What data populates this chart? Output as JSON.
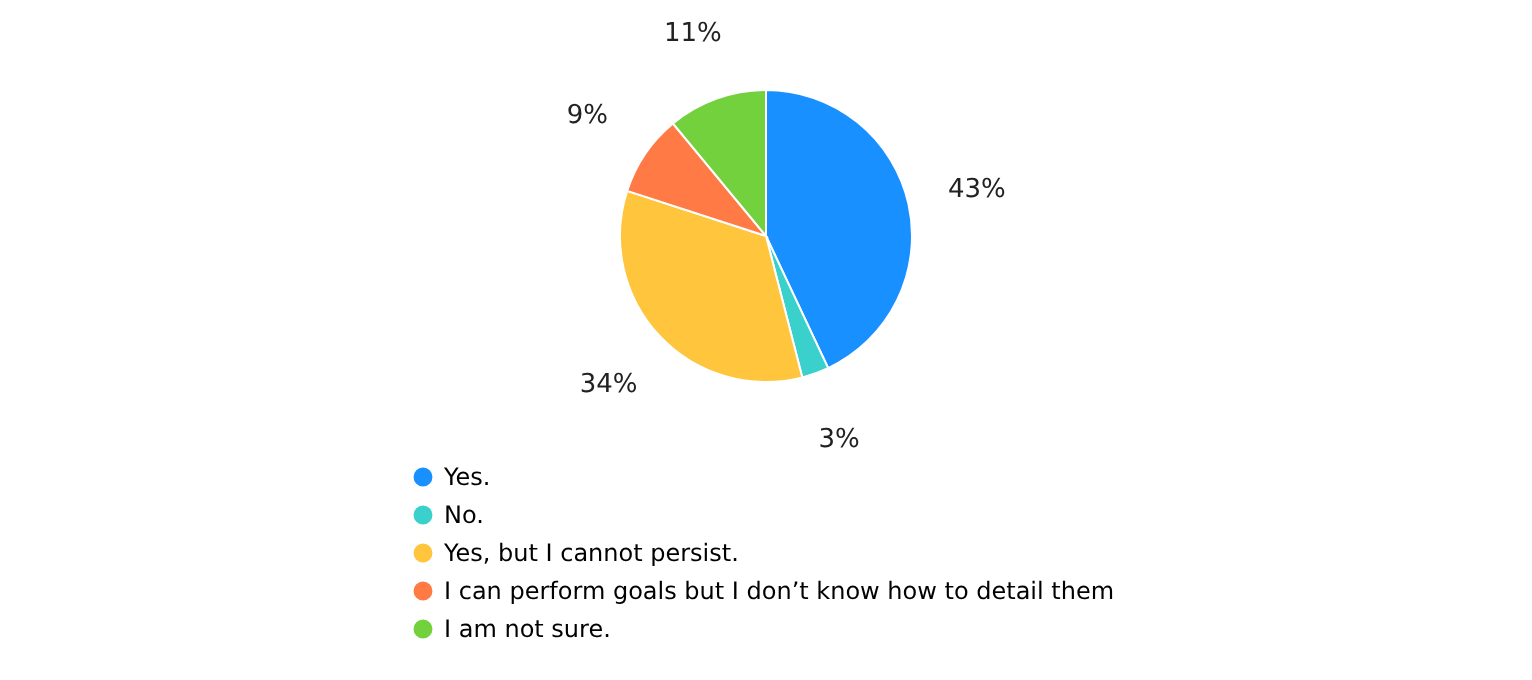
{
  "chart_data": {
    "type": "pie",
    "categories": [
      "Yes.",
      "No.",
      "Yes, but I cannot persist.",
      "I can perform goals but I don’t know how to detail them",
      "I am not sure."
    ],
    "values": [
      43,
      3,
      34,
      9,
      11
    ],
    "colors": [
      "#1890ff",
      "#3ad1cc",
      "#ffc53d",
      "#ff7a45",
      "#73d13d"
    ],
    "value_labels": [
      "43%",
      "3%",
      "34%",
      "9%",
      "11%"
    ],
    "legend": "bottom"
  }
}
